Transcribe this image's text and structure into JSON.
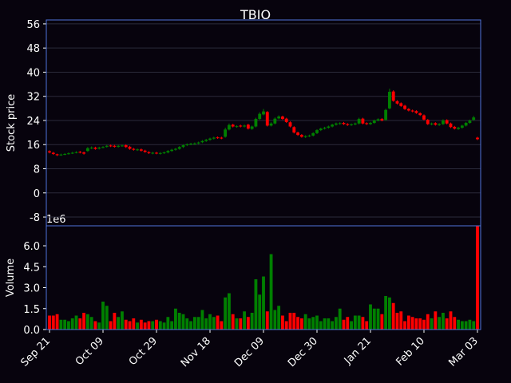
{
  "chart_data": {
    "type": "candlestick",
    "title": "TBIO",
    "ylabel": "Stock price",
    "volume_ylabel": "Volume",
    "volume_offset_label": "1e6",
    "categories": [
      "Sep 21",
      null,
      null,
      null,
      null,
      null,
      null,
      null,
      null,
      null,
      null,
      null,
      null,
      null,
      "Oct 09",
      null,
      null,
      null,
      null,
      null,
      null,
      null,
      null,
      null,
      null,
      null,
      null,
      null,
      "Oct 29",
      null,
      null,
      null,
      null,
      null,
      null,
      null,
      null,
      null,
      null,
      null,
      null,
      null,
      "Nov 18",
      null,
      null,
      null,
      null,
      null,
      null,
      null,
      null,
      null,
      null,
      null,
      null,
      null,
      "Dec 09",
      null,
      null,
      null,
      null,
      null,
      null,
      null,
      null,
      null,
      null,
      null,
      null,
      null,
      "Dec 30",
      null,
      null,
      null,
      null,
      null,
      null,
      null,
      null,
      null,
      null,
      null,
      null,
      null,
      "Jan 21",
      null,
      null,
      null,
      null,
      null,
      null,
      null,
      null,
      null,
      null,
      null,
      null,
      null,
      "Feb 10",
      null,
      null,
      null,
      null,
      null,
      null,
      null,
      null,
      null,
      null,
      null,
      null,
      null,
      "Mar 03"
    ],
    "open": [
      13.8,
      13.3,
      12.8,
      12.5,
      12.7,
      12.9,
      13.1,
      13.3,
      13.6,
      13.4,
      13.9,
      14.8,
      15.0,
      14.7,
      15.0,
      15.3,
      15.7,
      15.6,
      15.3,
      15.6,
      15.8,
      15.3,
      14.6,
      14.2,
      14.4,
      14.0,
      13.5,
      13.1,
      13.3,
      13.0,
      13.2,
      13.4,
      13.9,
      14.3,
      14.6,
      15.2,
      15.8,
      16.1,
      16.2,
      16.4,
      16.8,
      17.2,
      17.6,
      18.0,
      18.4,
      18.3,
      18.6,
      21.0,
      22.6,
      21.9,
      22.3,
      22.0,
      22.6,
      21.2,
      22.0,
      24.5,
      26.0,
      26.8,
      22.3,
      23.0,
      24.7,
      25.3,
      24.6,
      23.4,
      21.8,
      20.0,
      19.2,
      18.5,
      18.8,
      19.0,
      19.8,
      20.8,
      21.3,
      21.6,
      22.0,
      22.6,
      22.9,
      23.2,
      22.8,
      22.5,
      22.7,
      23.0,
      24.6,
      23.1,
      22.8,
      23.2,
      24.0,
      24.5,
      24.2,
      28.0,
      33.6,
      30.4,
      29.7,
      28.9,
      27.8,
      27.3,
      27.1,
      26.4,
      25.7,
      24.2,
      22.7,
      23.1,
      22.5,
      22.8,
      24.1,
      23.0,
      21.9,
      21.2,
      21.6,
      22.3,
      23.2,
      24.2,
      18.3
    ],
    "high": [
      14.1,
      13.6,
      13.0,
      13.0,
      13.2,
      13.4,
      13.6,
      13.8,
      13.9,
      13.7,
      15.2,
      15.4,
      15.3,
      15.3,
      15.5,
      15.9,
      16.0,
      15.9,
      15.9,
      16.0,
      16.1,
      15.6,
      14.9,
      14.7,
      14.7,
      14.3,
      13.8,
      13.6,
      13.6,
      13.5,
      13.7,
      14.2,
      14.6,
      14.9,
      15.5,
      16.1,
      16.4,
      16.6,
      16.7,
      17.0,
      17.5,
      17.9,
      18.3,
      18.6,
      18.7,
      18.6,
      21.6,
      23.0,
      22.9,
      22.4,
      22.6,
      22.6,
      22.9,
      22.3,
      24.9,
      26.7,
      27.8,
      27.1,
      23.4,
      25.0,
      25.7,
      25.6,
      24.9,
      23.7,
      22.1,
      20.3,
      19.5,
      19.1,
      19.3,
      20.1,
      21.1,
      21.6,
      21.9,
      22.3,
      22.9,
      23.3,
      23.4,
      23.5,
      23.1,
      23.0,
      23.3,
      24.9,
      24.9,
      23.4,
      23.5,
      24.3,
      24.7,
      24.8,
      27.9,
      34.5,
      34.0,
      30.7,
      30.0,
      29.2,
      28.1,
      27.6,
      27.4,
      26.7,
      26.0,
      24.5,
      23.3,
      23.4,
      23.1,
      24.4,
      24.4,
      23.3,
      22.2,
      21.9,
      22.6,
      23.5,
      24.3,
      25.5,
      18.6
    ],
    "low": [
      13.1,
      12.6,
      12.2,
      12.3,
      12.5,
      12.7,
      12.9,
      13.1,
      13.1,
      12.7,
      13.6,
      14.5,
      14.3,
      14.4,
      14.8,
      15.0,
      15.2,
      15.0,
      15.0,
      15.3,
      14.9,
      14.3,
      14.0,
      13.9,
      13.7,
      13.3,
      12.9,
      12.8,
      12.8,
      12.7,
      12.9,
      13.1,
      13.6,
      14.0,
      14.3,
      14.9,
      15.5,
      15.8,
      15.9,
      16.1,
      16.5,
      16.9,
      17.3,
      17.7,
      17.9,
      17.8,
      18.3,
      20.7,
      21.7,
      21.6,
      21.7,
      21.7,
      21.0,
      20.9,
      21.7,
      24.2,
      25.7,
      22.0,
      22.0,
      22.7,
      24.4,
      24.2,
      23.2,
      21.7,
      19.7,
      18.9,
      18.3,
      18.2,
      18.5,
      18.7,
      19.5,
      20.5,
      21.0,
      21.3,
      21.7,
      22.3,
      22.6,
      22.5,
      22.2,
      22.2,
      22.4,
      22.7,
      22.7,
      22.5,
      22.5,
      22.9,
      23.7,
      23.7,
      23.9,
      27.7,
      30.2,
      29.3,
      28.5,
      27.5,
      27.0,
      26.7,
      26.2,
      25.5,
      24.0,
      22.5,
      22.4,
      22.3,
      22.2,
      22.5,
      22.7,
      21.5,
      21.0,
      20.9,
      21.3,
      22.0,
      22.9,
      23.9,
      17.5
    ],
    "close": [
      13.4,
      12.9,
      12.5,
      12.7,
      12.9,
      13.1,
      13.3,
      13.5,
      13.4,
      13.0,
      14.8,
      15.0,
      14.6,
      15.0,
      15.2,
      15.6,
      15.5,
      15.3,
      15.6,
      15.7,
      15.2,
      14.6,
      14.3,
      14.4,
      14.0,
      13.6,
      13.2,
      13.3,
      13.1,
      13.2,
      13.4,
      13.9,
      14.3,
      14.6,
      15.2,
      15.8,
      16.1,
      16.3,
      16.4,
      16.7,
      17.2,
      17.6,
      18.0,
      18.3,
      18.2,
      18.1,
      21.0,
      22.5,
      22.0,
      22.1,
      22.0,
      22.3,
      21.3,
      22.0,
      24.5,
      26.2,
      27.0,
      22.3,
      23.0,
      24.6,
      25.3,
      24.5,
      23.5,
      22.0,
      20.0,
      19.2,
      18.6,
      18.8,
      19.0,
      19.8,
      20.8,
      21.3,
      21.6,
      22.0,
      22.6,
      23.0,
      23.1,
      22.8,
      22.5,
      22.7,
      23.0,
      24.5,
      23.0,
      22.8,
      23.2,
      24.0,
      24.4,
      24.0,
      27.5,
      33.5,
      30.5,
      29.6,
      28.8,
      27.8,
      27.3,
      27.0,
      26.5,
      25.8,
      24.3,
      22.8,
      23.0,
      22.6,
      22.8,
      24.0,
      23.0,
      21.8,
      21.3,
      21.6,
      22.3,
      23.2,
      24.0,
      25.0,
      17.8
    ],
    "volume": [
      1.0,
      1.0,
      1.1,
      0.7,
      0.7,
      0.6,
      0.8,
      1.0,
      0.8,
      1.2,
      1.1,
      0.9,
      0.6,
      0.5,
      2.0,
      1.7,
      0.6,
      1.2,
      0.9,
      1.3,
      0.7,
      0.6,
      0.8,
      0.5,
      0.7,
      0.5,
      0.6,
      0.6,
      0.7,
      0.6,
      0.5,
      0.9,
      0.6,
      1.5,
      1.2,
      1.1,
      0.8,
      0.6,
      0.9,
      0.9,
      1.4,
      0.8,
      1.1,
      0.9,
      1.0,
      0.6,
      2.3,
      2.6,
      1.1,
      0.8,
      0.8,
      1.3,
      0.9,
      1.2,
      3.6,
      2.5,
      3.8,
      1.3,
      5.4,
      1.4,
      1.7,
      1.0,
      0.6,
      1.2,
      1.2,
      0.9,
      0.8,
      1.1,
      0.8,
      0.9,
      1.0,
      0.6,
      0.8,
      0.8,
      0.6,
      0.9,
      1.5,
      0.7,
      0.9,
      0.6,
      1.0,
      1.0,
      0.9,
      0.6,
      1.8,
      1.5,
      1.5,
      1.1,
      2.4,
      2.3,
      1.9,
      1.2,
      1.3,
      0.6,
      1.0,
      0.9,
      0.8,
      0.8,
      0.7,
      1.1,
      0.8,
      1.3,
      0.9,
      1.2,
      0.8,
      1.3,
      0.9,
      0.7,
      0.6,
      0.6,
      0.7,
      0.6,
      7.4
    ],
    "up_color": "#008000",
    "down_color": "#ff0000",
    "xlim": [
      -0.84,
      112.84
    ],
    "ylim": [
      -10.9,
      57.3
    ],
    "yticks": [
      -8,
      0,
      8,
      16,
      24,
      32,
      40,
      48,
      56
    ],
    "grid": true,
    "volume_ylim": [
      0,
      7.43
    ],
    "volume_yticks": [
      {
        "value": 0,
        "label": "0.0"
      },
      {
        "value": 1.5,
        "label": "1.5"
      },
      {
        "value": 3,
        "label": "3.0"
      },
      {
        "value": 4.5,
        "label": "4.5"
      },
      {
        "value": 6,
        "label": "6.0"
      }
    ]
  }
}
